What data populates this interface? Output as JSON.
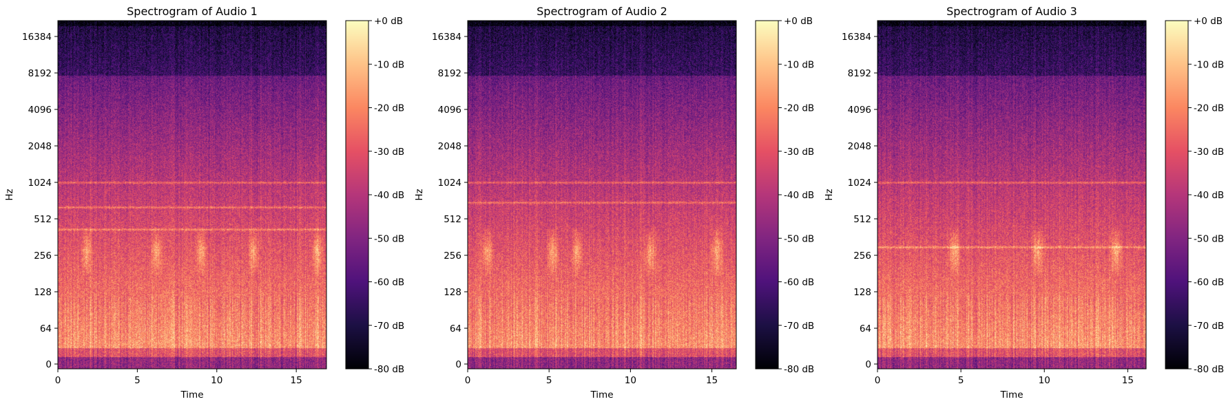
{
  "chart_data": [
    {
      "type": "heatmap",
      "title": "Spectrogram of Audio 1",
      "xlabel": "Time",
      "ylabel": "Hz",
      "x_ticks": [
        0,
        5,
        10,
        15
      ],
      "xlim": [
        0,
        16.9
      ],
      "y_ticks": [
        0,
        64,
        128,
        256,
        512,
        1024,
        2048,
        4096,
        8192,
        16384
      ],
      "y_scale": "log2",
      "colorbar": {
        "ticks": [
          "+0 dB",
          "-10 dB",
          "-20 dB",
          "-30 dB",
          "-40 dB",
          "-50 dB",
          "-60 dB",
          "-70 dB",
          "-80 dB"
        ],
        "range_db": [
          -80,
          0
        ],
        "colormap": "magma"
      },
      "tonal_line_hz": [
        1024,
        640,
        420
      ],
      "energy_bursts_time": [
        1.8,
        6.2,
        9.0,
        12.3,
        16.3
      ]
    },
    {
      "type": "heatmap",
      "title": "Spectrogram of Audio 2",
      "xlabel": "Time",
      "ylabel": "Hz",
      "x_ticks": [
        0,
        5,
        10,
        15
      ],
      "xlim": [
        0,
        16.5
      ],
      "y_ticks": [
        0,
        64,
        128,
        256,
        512,
        1024,
        2048,
        4096,
        8192,
        16384
      ],
      "y_scale": "log2",
      "colorbar": {
        "ticks": [
          "+0 dB",
          "-10 dB",
          "-20 dB",
          "-30 dB",
          "-40 dB",
          "-50 dB",
          "-60 dB",
          "-70 dB",
          "-80 dB"
        ],
        "range_db": [
          -80,
          0
        ],
        "colormap": "magma"
      },
      "tonal_line_hz": [
        700,
        1024
      ],
      "energy_bursts_time": [
        1.2,
        5.2,
        6.7,
        11.2,
        15.3
      ]
    },
    {
      "type": "heatmap",
      "title": "Spectrogram of Audio 3",
      "xlabel": "Time",
      "ylabel": "Hz",
      "x_ticks": [
        0,
        5,
        10,
        15
      ],
      "xlim": [
        0,
        16.1
      ],
      "y_ticks": [
        0,
        64,
        128,
        256,
        512,
        1024,
        2048,
        4096,
        8192,
        16384
      ],
      "y_scale": "log2",
      "colorbar": {
        "ticks": [
          "+0 dB",
          "-10 dB",
          "-20 dB",
          "-30 dB",
          "-40 dB",
          "-50 dB",
          "-60 dB",
          "-70 dB",
          "-80 dB"
        ],
        "range_db": [
          -80,
          0
        ],
        "colormap": "magma"
      },
      "tonal_line_hz": [
        1024,
        300
      ],
      "energy_bursts_time": [
        4.6,
        9.6,
        14.3
      ]
    }
  ]
}
